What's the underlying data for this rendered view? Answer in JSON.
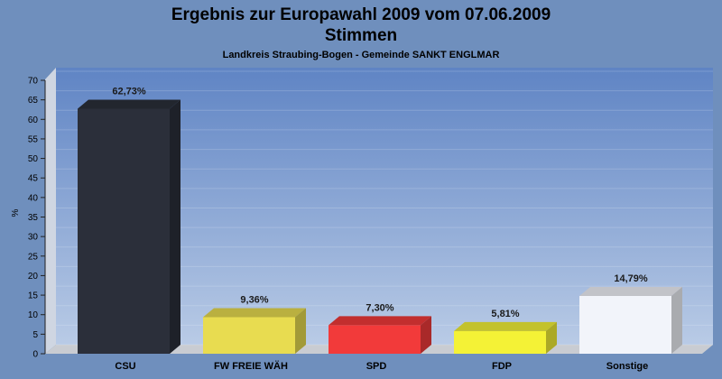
{
  "chart_data": {
    "type": "bar",
    "title": "Ergebnis zur Europawahl 2009 vom 07.06.2009",
    "subtitle": "Stimmen",
    "caption": "Landkreis Straubing-Bogen - Gemeinde SANKT ENGLMAR",
    "ylabel": "%",
    "ylim": [
      0,
      70
    ],
    "yticks": [
      0,
      5,
      10,
      15,
      20,
      25,
      30,
      35,
      40,
      45,
      50,
      55,
      60,
      65,
      70
    ],
    "categories": [
      "CSU",
      "FW FREIE WÄH",
      "SPD",
      "FDP",
      "Sonstige"
    ],
    "values": [
      62.73,
      9.36,
      7.3,
      5.81,
      14.79
    ],
    "value_labels": [
      "62,73%",
      "9,36%",
      "7,30%",
      "5,81%",
      "14,79%"
    ],
    "colors": [
      "#2b2f3a",
      "#e8dc50",
      "#f23a3a",
      "#f4f236",
      "#f2f4fa"
    ],
    "grid": true
  },
  "colors": {
    "background": "#6f8fbd",
    "plot_top": "#5f84c4",
    "plot_bottom": "#b9cbe6"
  }
}
